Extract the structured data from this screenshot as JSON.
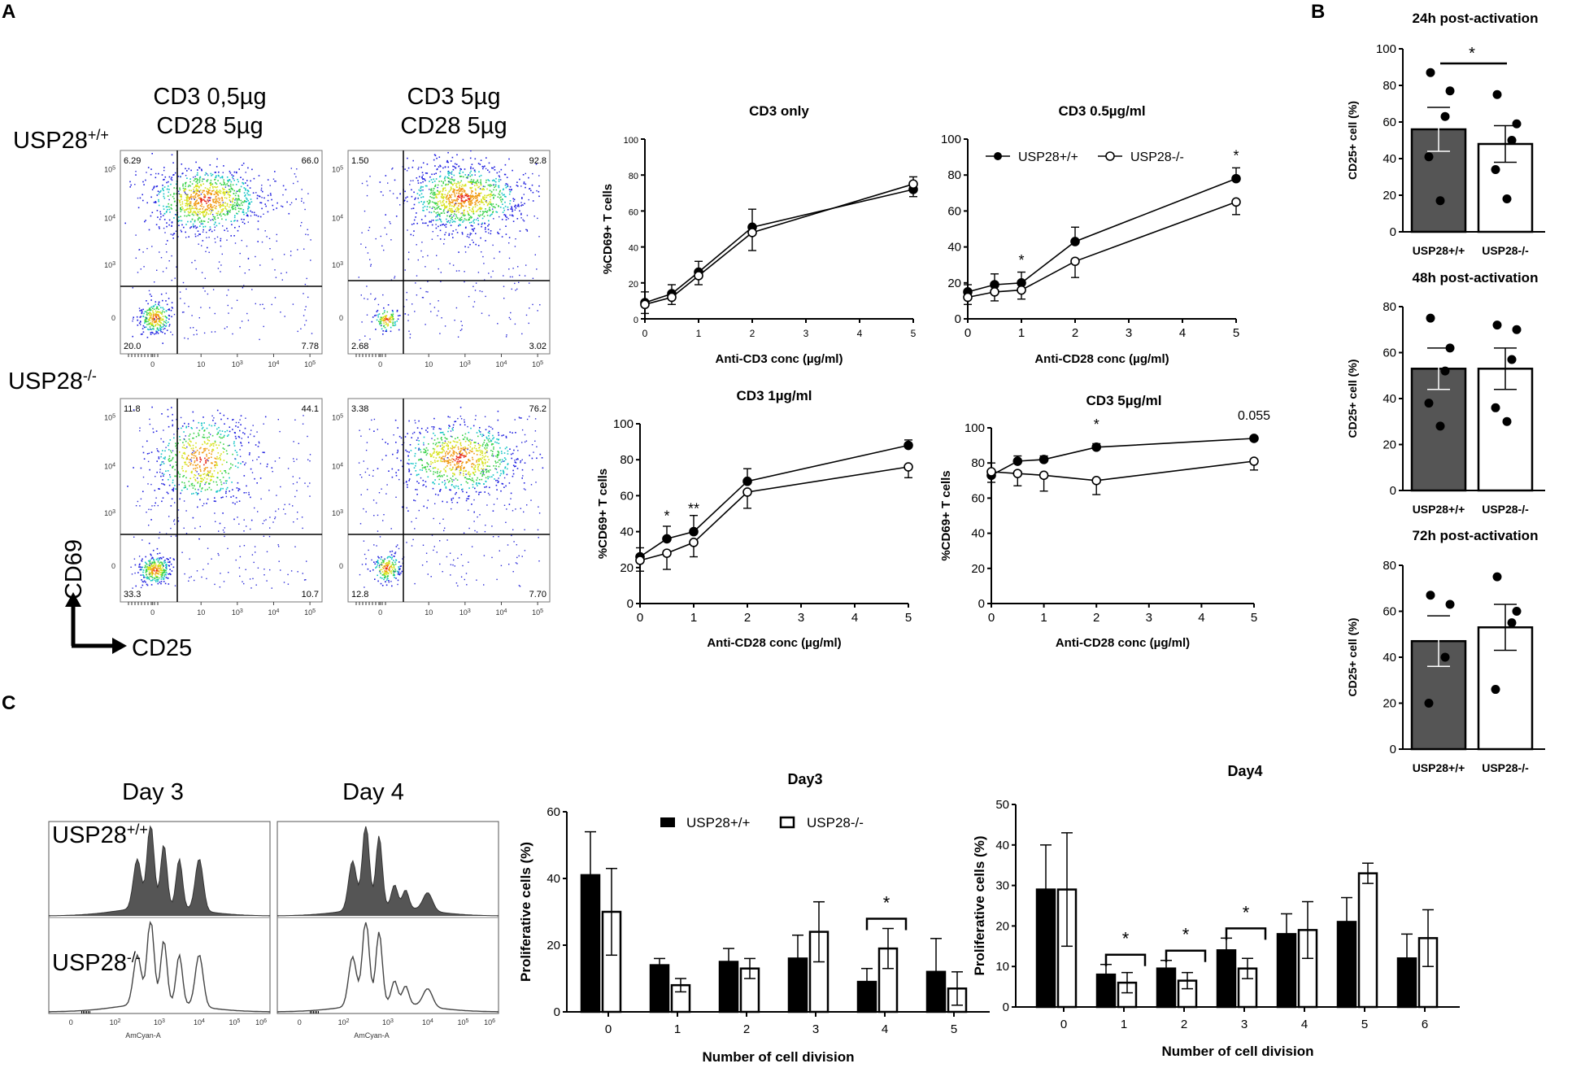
{
  "panel_labels": {
    "A": "A",
    "B": "B",
    "C": "C"
  },
  "flow": {
    "col_titles": [
      [
        "CD3 0,5µg",
        "CD28 5µg"
      ],
      [
        "CD3 5µg",
        "CD28 5µg"
      ]
    ],
    "row_labels": [
      {
        "base": "USP28",
        "sup": "+/+"
      },
      {
        "base": "USP28",
        "sup": "-/-"
      }
    ],
    "quadrants": [
      [
        "6.29",
        "66.0",
        "20.0",
        "7.78"
      ],
      [
        "1.50",
        "92.8",
        "2.68",
        "3.02"
      ],
      [
        "11.8",
        "44.1",
        "33.3",
        "10.7"
      ],
      [
        "3.38",
        "76.2",
        "12.8",
        "7.70"
      ]
    ],
    "x_axis_label": "CD25",
    "y_axis_label": "CD69",
    "tick_labels_x": [
      "0",
      "10",
      "10",
      "10",
      "10"
    ],
    "tick_exps_x": [
      "",
      "3",
      "4",
      "5"
    ],
    "tick_labels_y": [
      "0",
      "10",
      "10",
      "10"
    ],
    "tick_exps_y": [
      "3",
      "4",
      "5"
    ]
  },
  "histograms": {
    "titles": [
      "Day 3",
      "Day 4"
    ],
    "row_labels": [
      {
        "base": "USP28",
        "sup": "+/+"
      },
      {
        "base": "USP28",
        "sup": "-/-"
      }
    ],
    "xlabel": "AmCyan-A",
    "ticks": [
      "0",
      "10",
      "10",
      "10",
      "10",
      "10"
    ],
    "tick_exps": [
      "2",
      "3",
      "4",
      "5",
      "6"
    ]
  },
  "chart_data": [
    {
      "id": "cd3_only",
      "type": "line",
      "title": "CD3 only",
      "xlabel": "Anti-CD3 conc (µg/ml)",
      "ylabel": "%CD69+ T cells",
      "xlim": [
        0,
        5
      ],
      "ylim": [
        0,
        100
      ],
      "xticks": [
        0,
        1,
        2,
        3,
        4,
        5
      ],
      "yticks": [
        0,
        20,
        40,
        60,
        80,
        100
      ],
      "x": [
        0,
        0.5,
        1,
        2,
        5
      ],
      "series": [
        {
          "name": "USP28+/+",
          "values": [
            9,
            14,
            26,
            51,
            72
          ],
          "err": [
            6,
            5,
            6,
            10,
            7
          ]
        },
        {
          "name": "USP28-/-",
          "values": [
            8,
            12,
            24,
            48,
            75
          ],
          "err": [
            5,
            4,
            5,
            10,
            7
          ]
        }
      ],
      "annotations": []
    },
    {
      "id": "cd3_05",
      "type": "line",
      "title": "CD3 0.5µg/ml",
      "xlabel": "Anti-CD28 conc (µg/ml)",
      "ylabel": "",
      "xlim": [
        0,
        5
      ],
      "ylim": [
        0,
        100
      ],
      "xticks": [
        0,
        1,
        2,
        3,
        4,
        5
      ],
      "yticks": [
        0,
        20,
        40,
        60,
        80,
        100
      ],
      "x": [
        0,
        0.5,
        1,
        2,
        5
      ],
      "series": [
        {
          "name": "USP28+/+",
          "values": [
            15,
            19,
            20,
            43,
            78
          ],
          "err": [
            4,
            6,
            6,
            8,
            6
          ]
        },
        {
          "name": "USP28-/-",
          "values": [
            12,
            15,
            16,
            32,
            65
          ],
          "err": [
            4,
            5,
            5,
            9,
            7
          ]
        }
      ],
      "legend": [
        "USP28+/+",
        "USP28-/-"
      ],
      "annotations": [
        {
          "x": 1,
          "text": "*"
        },
        {
          "x": 5,
          "text": "*"
        }
      ]
    },
    {
      "id": "cd3_1",
      "type": "line",
      "title": "CD3 1µg/ml",
      "xlabel": "Anti-CD28 conc (µg/ml)",
      "ylabel": "%CD69+ T cells",
      "xlim": [
        0,
        5
      ],
      "ylim": [
        0,
        100
      ],
      "xticks": [
        0,
        1,
        2,
        3,
        4,
        5
      ],
      "yticks": [
        0,
        20,
        40,
        60,
        80,
        100
      ],
      "x": [
        0,
        0.5,
        1,
        2,
        5
      ],
      "series": [
        {
          "name": "USP28+/+",
          "values": [
            26,
            36,
            40,
            68,
            88
          ],
          "err": [
            5,
            7,
            9,
            7,
            3
          ]
        },
        {
          "name": "USP28-/-",
          "values": [
            24,
            28,
            34,
            62,
            76
          ],
          "err": [
            6,
            9,
            8,
            9,
            6
          ]
        }
      ],
      "annotations": [
        {
          "x": 0.5,
          "text": "*"
        },
        {
          "x": 1,
          "text": "**"
        }
      ]
    },
    {
      "id": "cd3_5",
      "type": "line",
      "title": "CD3 5µg/ml",
      "xlabel": "Anti-CD28 conc (µg/ml)",
      "ylabel": "%CD69+ T cells",
      "xlim": [
        0,
        5
      ],
      "ylim": [
        0,
        100
      ],
      "xticks": [
        0,
        1,
        2,
        3,
        4,
        5
      ],
      "yticks": [
        0,
        20,
        40,
        60,
        80,
        100
      ],
      "x": [
        0,
        0.5,
        1,
        2,
        5
      ],
      "series": [
        {
          "name": "USP28+/+",
          "values": [
            73,
            81,
            82,
            89,
            94
          ],
          "err": [
            7,
            3,
            2,
            2,
            1
          ]
        },
        {
          "name": "USP28-/-",
          "values": [
            75,
            74,
            73,
            70,
            81
          ],
          "err": [
            6,
            7,
            9,
            8,
            5
          ]
        }
      ],
      "annotations": [
        {
          "x": 2,
          "text": "*"
        },
        {
          "x": 5,
          "text": "0.055"
        }
      ]
    },
    {
      "id": "cd25_24h",
      "type": "bar",
      "title": "24h post-activation",
      "ylabel": "CD25+ cell (%)",
      "ylim": [
        0,
        100
      ],
      "yticks": [
        0,
        20,
        40,
        60,
        80,
        100
      ],
      "categories": [
        "USP28+/+",
        "USP28-/-"
      ],
      "values": [
        56,
        48
      ],
      "err": [
        12,
        10
      ],
      "points": [
        [
          87,
          77,
          63,
          41,
          17
        ],
        [
          75,
          59,
          50,
          34,
          18
        ]
      ],
      "annotations": [
        {
          "text": "*"
        }
      ]
    },
    {
      "id": "cd25_48h",
      "type": "bar",
      "title": "48h post-activation",
      "ylabel": "CD25+ cell (%)",
      "ylim": [
        0,
        80
      ],
      "yticks": [
        0,
        20,
        40,
        60,
        80
      ],
      "categories": [
        "USP28+/+",
        "USP28-/-"
      ],
      "values": [
        53,
        53
      ],
      "err": [
        9,
        9
      ],
      "points": [
        [
          75,
          62,
          52,
          38,
          28
        ],
        [
          72,
          70,
          57,
          36,
          30
        ]
      ],
      "annotations": []
    },
    {
      "id": "cd25_72h",
      "type": "bar",
      "title": "72h post-activation",
      "ylabel": "CD25+ cell (%)",
      "ylim": [
        0,
        80
      ],
      "yticks": [
        0,
        20,
        40,
        60,
        80
      ],
      "categories": [
        "USP28+/+",
        "USP28-/-"
      ],
      "values": [
        47,
        53
      ],
      "err": [
        11,
        10
      ],
      "points": [
        [
          67,
          63,
          40,
          20
        ],
        [
          75,
          60,
          55,
          26
        ]
      ],
      "annotations": []
    },
    {
      "id": "day3",
      "type": "bar",
      "title": "Day3",
      "xlabel": "Number of cell division",
      "ylabel": "Proliferative cells (%)",
      "ylim": [
        0,
        60
      ],
      "yticks": [
        0,
        20,
        40,
        60
      ],
      "categories": [
        "0",
        "1",
        "2",
        "3",
        "4",
        "5"
      ],
      "series": [
        {
          "name": "USP28+/+",
          "values": [
            41,
            14,
            15,
            16,
            9,
            12
          ],
          "err": [
            13,
            2,
            4,
            7,
            4,
            10
          ]
        },
        {
          "name": "USP28-/-",
          "values": [
            30,
            8,
            13,
            24,
            19,
            7
          ],
          "err": [
            13,
            2,
            3,
            9,
            6,
            5
          ]
        }
      ],
      "legend": [
        "USP28+/+",
        "USP28-/-"
      ],
      "annotations": [
        {
          "category": "4",
          "text": "*"
        }
      ]
    },
    {
      "id": "day4",
      "type": "bar",
      "title": "Day4",
      "xlabel": "Number of cell division",
      "ylabel": "Proliferative cells (%)",
      "ylim": [
        0,
        50
      ],
      "yticks": [
        0,
        10,
        20,
        30,
        40,
        50
      ],
      "categories": [
        "0",
        "1",
        "2",
        "3",
        "4",
        "5",
        "6"
      ],
      "series": [
        {
          "name": "USP28+/+",
          "values": [
            29,
            8,
            9.5,
            14,
            18,
            21,
            12
          ],
          "err": [
            11,
            2.5,
            2,
            3,
            5,
            6,
            6
          ]
        },
        {
          "name": "USP28-/-",
          "values": [
            29,
            6,
            6.5,
            9.5,
            19,
            33,
            17
          ],
          "err": [
            14,
            2.5,
            2,
            2.5,
            7,
            2.5,
            7
          ]
        }
      ],
      "annotations": [
        {
          "category": "1",
          "text": "*"
        },
        {
          "category": "2",
          "text": "*"
        },
        {
          "category": "3",
          "text": "*"
        }
      ]
    }
  ]
}
